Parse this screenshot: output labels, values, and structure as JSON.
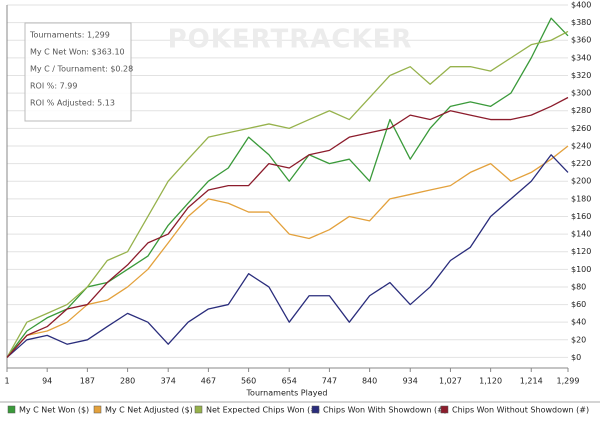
{
  "chart_data": {
    "type": "line",
    "x_label": "Tournaments Played",
    "watermark": "POKERTRACKER",
    "annotations": [
      "Tournaments: 1,299",
      "My C Net Won: $363.10",
      "My C / Tournament: $0.28",
      "ROI %: 7.99",
      "ROI % Adjusted: 5.13"
    ],
    "x": [
      1,
      47,
      94,
      140,
      187,
      233,
      280,
      327,
      374,
      420,
      467,
      513,
      560,
      607,
      654,
      700,
      747,
      793,
      840,
      887,
      934,
      980,
      1027,
      1073,
      1120,
      1167,
      1214,
      1260,
      1299
    ],
    "xlim": [
      1,
      1299
    ],
    "xticks": [
      1,
      94,
      187,
      280,
      374,
      467,
      560,
      654,
      747,
      840,
      934,
      {
        "value": 1027,
        "label": "1,027"
      },
      {
        "value": 1120,
        "label": "1,120"
      },
      {
        "value": 1214,
        "label": "1,214"
      },
      {
        "value": 1299,
        "label": "1,299"
      }
    ],
    "ylim": [
      -12,
      400
    ],
    "yticks": [
      {
        "value": 0,
        "label": "$0"
      },
      {
        "value": 20,
        "label": "$20"
      },
      {
        "value": 40,
        "label": "$40"
      },
      {
        "value": 60,
        "label": "$60"
      },
      {
        "value": 80,
        "label": "$80"
      },
      {
        "value": 100,
        "label": "$100"
      },
      {
        "value": 120,
        "label": "$120"
      },
      {
        "value": 140,
        "label": "$140"
      },
      {
        "value": 160,
        "label": "$160"
      },
      {
        "value": 180,
        "label": "$180"
      },
      {
        "value": 200,
        "label": "$200"
      },
      {
        "value": 220,
        "label": "$220"
      },
      {
        "value": 240,
        "label": "$240"
      },
      {
        "value": 260,
        "label": "$260"
      },
      {
        "value": 280,
        "label": "$280"
      },
      {
        "value": 300,
        "label": "$300"
      },
      {
        "value": 320,
        "label": "$320"
      },
      {
        "value": 340,
        "label": "$340"
      },
      {
        "value": 360,
        "label": "$360"
      },
      {
        "value": 380,
        "label": "$380"
      },
      {
        "value": 400,
        "label": "$400"
      }
    ],
    "grid": true,
    "legend": "bottom",
    "series": [
      {
        "name": "My C Net Won ($)",
        "color": "#3a9a3a",
        "values": [
          0,
          30,
          45,
          55,
          80,
          85,
          100,
          115,
          150,
          175,
          200,
          215,
          250,
          230,
          200,
          230,
          220,
          225,
          200,
          270,
          225,
          260,
          285,
          290,
          285,
          300,
          340,
          385,
          365
        ]
      },
      {
        "name": "My C Net Adjusted ($)",
        "color": "#e3a13c",
        "values": [
          0,
          25,
          30,
          40,
          60,
          65,
          80,
          100,
          130,
          160,
          180,
          175,
          165,
          165,
          140,
          135,
          145,
          160,
          155,
          180,
          185,
          190,
          195,
          210,
          220,
          200,
          210,
          225,
          240
        ]
      },
      {
        "name": "Net Expected Chips Won (#)",
        "color": "#96b24c",
        "values": [
          0,
          40,
          50,
          60,
          80,
          110,
          120,
          160,
          200,
          225,
          250,
          255,
          260,
          265,
          260,
          270,
          280,
          270,
          295,
          320,
          330,
          310,
          330,
          330,
          325,
          340,
          355,
          360,
          370
        ]
      },
      {
        "name": "Chips Won With Showdown (#)",
        "color": "#2a2d7c",
        "values": [
          0,
          20,
          25,
          15,
          20,
          35,
          50,
          40,
          15,
          40,
          55,
          60,
          95,
          80,
          40,
          70,
          70,
          40,
          70,
          85,
          60,
          80,
          110,
          125,
          160,
          180,
          200,
          230,
          210
        ]
      },
      {
        "name": "Chips Won Without Showdown (#)",
        "color": "#8c1c2c",
        "values": [
          0,
          25,
          35,
          55,
          60,
          85,
          105,
          130,
          140,
          170,
          190,
          195,
          195,
          220,
          215,
          230,
          235,
          250,
          255,
          260,
          275,
          270,
          280,
          275,
          270,
          270,
          275,
          285,
          295
        ]
      }
    ]
  }
}
